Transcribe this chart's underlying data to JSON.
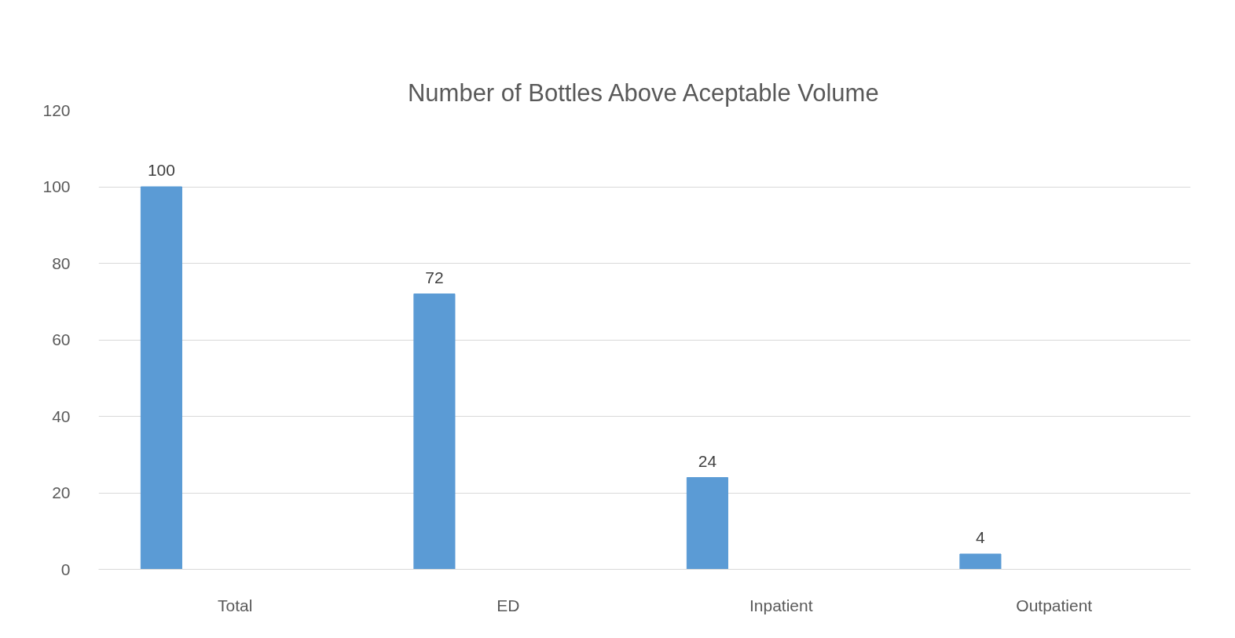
{
  "chart_data": {
    "type": "bar",
    "title": "Number of Bottles Above Aceptable Volume",
    "categories": [
      "Total",
      "ED",
      "Inpatient",
      "Outpatient"
    ],
    "values": [
      100,
      72,
      24,
      4
    ],
    "color": "#5b9bd5",
    "ylim": [
      0,
      120
    ],
    "yticks": [
      0,
      20,
      40,
      60,
      80,
      100,
      120
    ],
    "grid": "y",
    "data_labels": true
  }
}
